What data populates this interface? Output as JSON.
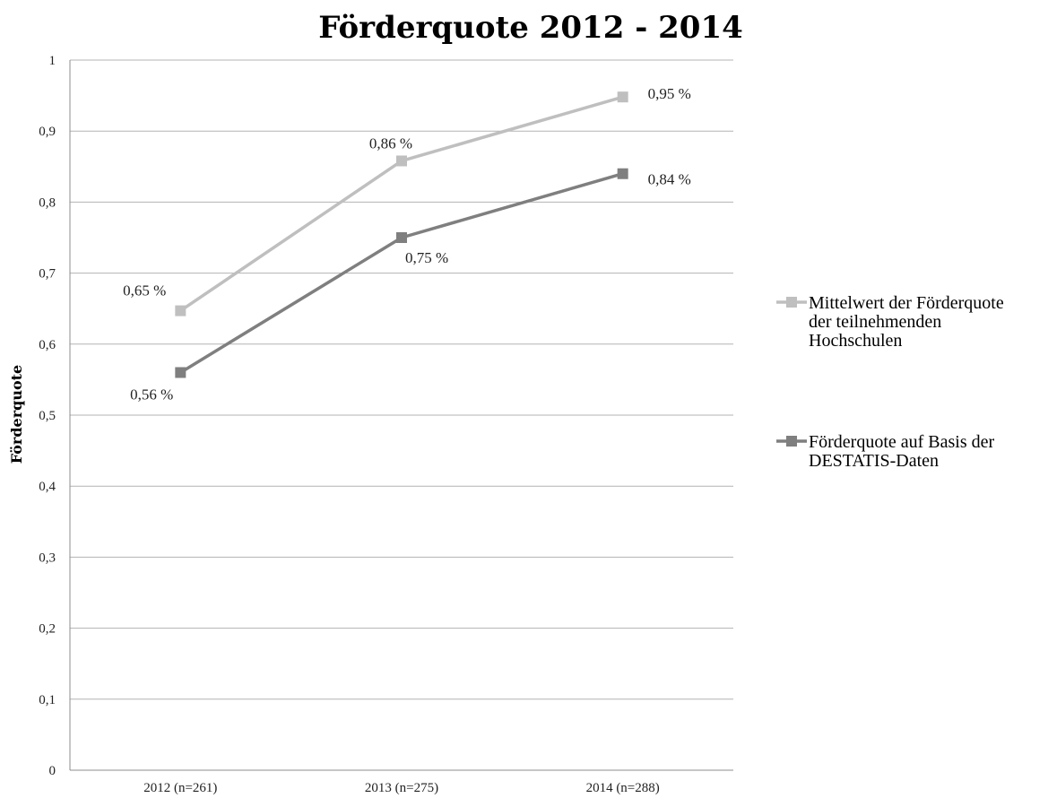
{
  "chart_data": {
    "type": "line",
    "title": "Förderquote 2012 - 2014",
    "xlabel": "",
    "ylabel": "Förderquote",
    "categories": [
      "2012 (n=261)",
      "2013 (n=275)",
      "2014 (n=288)"
    ],
    "y_ticks": [
      "0",
      "0,1",
      "0,2",
      "0,3",
      "0,4",
      "0,5",
      "0,6",
      "0,7",
      "0,8",
      "0,9",
      "1"
    ],
    "ylim": [
      0,
      1
    ],
    "grid": true,
    "legend_position": "right",
    "series": [
      {
        "name_lines": [
          "Mittelwert der Förderquote",
          "der teilnehmenden",
          "Hochschulen"
        ],
        "values": [
          0.647,
          0.858,
          0.948
        ],
        "labels": [
          "0,65 %",
          "0,86 %",
          "0,95 %"
        ],
        "color": "#bfbfbf"
      },
      {
        "name_lines": [
          "Förderquote auf Basis der",
          "DESTATIS-Daten"
        ],
        "values": [
          0.56,
          0.75,
          0.84
        ],
        "labels": [
          "0,56 %",
          "0,75 %",
          "0,84 %"
        ],
        "color": "#7f7f7f"
      }
    ]
  }
}
